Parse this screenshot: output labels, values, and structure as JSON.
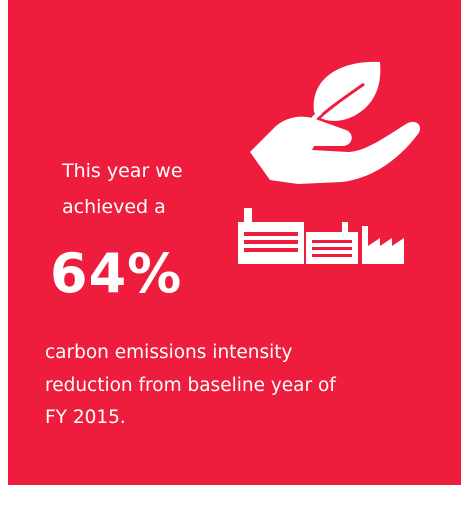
{
  "text": {
    "intro": [
      "This year we",
      "achieved a"
    ],
    "figure": "64%",
    "description": [
      "carbon emissions intensity",
      "reduction from baseline year of",
      "FY 2015."
    ]
  }
}
